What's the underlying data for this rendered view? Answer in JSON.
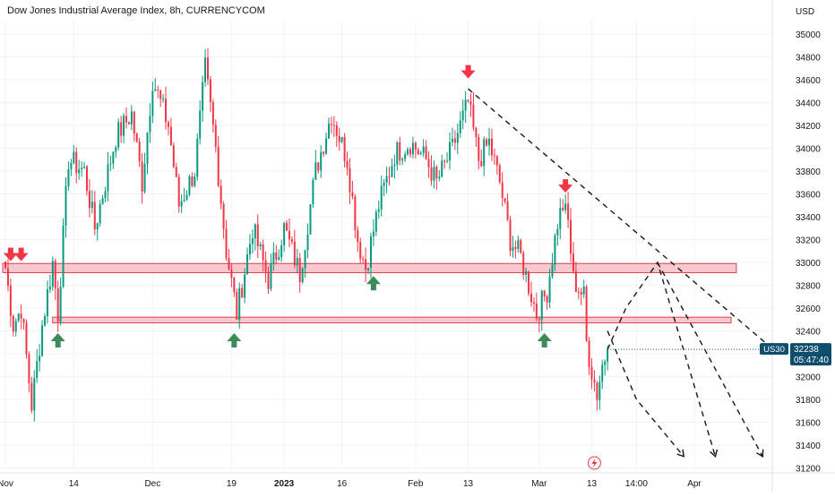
{
  "header": {
    "title": "Dow Jones Industrial Average Index, 8h, CURRENCYCOM",
    "currency": "USD"
  },
  "colors": {
    "bull": "#089981",
    "bear": "#f23645",
    "zone_fill": "#f7b6be",
    "zone_stroke": "#e0404f",
    "arrow_down": "#f23645",
    "arrow_up": "#3d8b58",
    "trendline": "#131722",
    "price_tag": "#0e4d6b",
    "bolt": "#f23645",
    "grid": "#f0f3fa",
    "axis_text": "#131722"
  },
  "chart_data": {
    "type": "candlestick",
    "symbol": "US30",
    "ylim": [
      31200,
      35200
    ],
    "y_ticks": [
      31200,
      31400,
      31600,
      31800,
      32000,
      32200,
      32400,
      32600,
      32800,
      33000,
      33200,
      33400,
      33600,
      33800,
      34000,
      34200,
      34400,
      34600,
      34800,
      35000
    ],
    "x_ticks": [
      {
        "label": "Nov",
        "bar": 0
      },
      {
        "label": "14",
        "bar": 26
      },
      {
        "label": "Dec",
        "bar": 56
      },
      {
        "label": "19",
        "bar": 86
      },
      {
        "label": "2023",
        "bar": 106,
        "bold": true
      },
      {
        "label": "16",
        "bar": 128
      },
      {
        "label": "Feb",
        "bar": 156
      },
      {
        "label": "13",
        "bar": 176
      },
      {
        "label": "Mar",
        "bar": 203
      },
      {
        "label": "13",
        "bar": 223
      },
      {
        "label": "14:00",
        "bar": 240
      },
      {
        "label": "Apr",
        "bar": 262
      }
    ],
    "last_price": {
      "value": 32238,
      "label": "32238",
      "countdown": "05:47:40",
      "symbol": "US30"
    },
    "key_prices": [
      {
        "bar": 0,
        "price": 32950
      },
      {
        "bar": 3,
        "price": 32450
      },
      {
        "bar": 6,
        "price": 32600
      },
      {
        "bar": 10,
        "price": 31750
      },
      {
        "bar": 14,
        "price": 32450
      },
      {
        "bar": 18,
        "price": 33000
      },
      {
        "bar": 20,
        "price": 32550
      },
      {
        "bar": 24,
        "price": 33900
      },
      {
        "bar": 30,
        "price": 33800
      },
      {
        "bar": 34,
        "price": 33300
      },
      {
        "bar": 42,
        "price": 34100
      },
      {
        "bar": 48,
        "price": 34300
      },
      {
        "bar": 52,
        "price": 33700
      },
      {
        "bar": 56,
        "price": 34600
      },
      {
        "bar": 62,
        "price": 34200
      },
      {
        "bar": 66,
        "price": 33500
      },
      {
        "bar": 72,
        "price": 33800
      },
      {
        "bar": 76,
        "price": 34700
      },
      {
        "bar": 80,
        "price": 34000
      },
      {
        "bar": 84,
        "price": 33100
      },
      {
        "bar": 88,
        "price": 32550
      },
      {
        "bar": 94,
        "price": 33300
      },
      {
        "bar": 100,
        "price": 32850
      },
      {
        "bar": 106,
        "price": 33300
      },
      {
        "bar": 112,
        "price": 32900
      },
      {
        "bar": 118,
        "price": 33800
      },
      {
        "bar": 124,
        "price": 34300
      },
      {
        "bar": 130,
        "price": 33900
      },
      {
        "bar": 134,
        "price": 33200
      },
      {
        "bar": 137,
        "price": 32950
      },
      {
        "bar": 142,
        "price": 33500
      },
      {
        "bar": 148,
        "price": 33950
      },
      {
        "bar": 154,
        "price": 34050
      },
      {
        "bar": 160,
        "price": 33900
      },
      {
        "bar": 164,
        "price": 33700
      },
      {
        "bar": 170,
        "price": 34000
      },
      {
        "bar": 176,
        "price": 34400
      },
      {
        "bar": 180,
        "price": 33900
      },
      {
        "bar": 184,
        "price": 34050
      },
      {
        "bar": 188,
        "price": 33700
      },
      {
        "bar": 192,
        "price": 33200
      },
      {
        "bar": 196,
        "price": 33050
      },
      {
        "bar": 199,
        "price": 32800
      },
      {
        "bar": 202,
        "price": 32550
      },
      {
        "bar": 206,
        "price": 32750
      },
      {
        "bar": 210,
        "price": 33350
      },
      {
        "bar": 212,
        "price": 33500
      },
      {
        "bar": 214,
        "price": 33350
      },
      {
        "bar": 216,
        "price": 32850
      },
      {
        "bar": 220,
        "price": 32700
      },
      {
        "bar": 221,
        "price": 32300
      },
      {
        "bar": 223,
        "price": 32050
      },
      {
        "bar": 225,
        "price": 31850
      },
      {
        "bar": 227,
        "price": 32100
      },
      {
        "bar": 229,
        "price": 32238
      }
    ],
    "zones": [
      {
        "name": "upper-resistance-zone",
        "from": 32910,
        "to": 32990,
        "bar_start": 0,
        "bar_end": 278
      },
      {
        "name": "lower-support-zone",
        "from": 32470,
        "to": 32520,
        "bar_start": 19,
        "bar_end": 276
      }
    ],
    "trendline": {
      "from": {
        "bar": 176,
        "price": 34520
      },
      "to": {
        "bar": 292,
        "price": 32238
      }
    },
    "projections": [
      {
        "points": [
          [
            229,
            32238
          ],
          [
            236,
            32600
          ],
          [
            248,
            33000
          ],
          [
            270,
            31300
          ]
        ]
      },
      {
        "points": [
          [
            248,
            33000
          ],
          [
            288,
            31300
          ]
        ]
      },
      {
        "points": [
          [
            229,
            32400
          ],
          [
            240,
            31800
          ],
          [
            258,
            31300
          ]
        ]
      }
    ],
    "down_arrows": [
      {
        "bar": 2,
        "price": 33050
      },
      {
        "bar": 6,
        "price": 33050
      },
      {
        "bar": 176,
        "price": 34650
      },
      {
        "bar": 213,
        "price": 33650
      }
    ],
    "up_arrows": [
      {
        "bar": 20,
        "price": 32380
      },
      {
        "bar": 87,
        "price": 32380
      },
      {
        "bar": 140,
        "price": 32880
      },
      {
        "bar": 205,
        "price": 32380
      }
    ]
  }
}
